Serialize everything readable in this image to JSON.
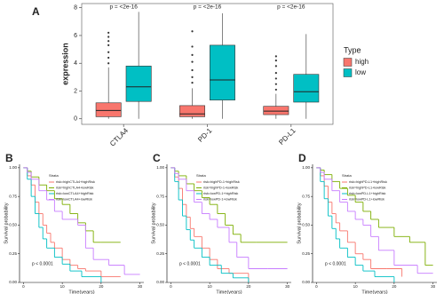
{
  "chart_data": [
    {
      "type": "box",
      "label": "A",
      "ylabel": "expression",
      "categories": [
        "CTLA4",
        "PD-1",
        "PD-L1"
      ],
      "annotations": [
        "p = <2e-16",
        "p = <2e-16",
        "p = <2e-16"
      ],
      "legend_title": "Type",
      "ylim": [
        -0.4,
        8.3
      ],
      "yticks": [
        0,
        2,
        4,
        6,
        8
      ],
      "series": [
        {
          "name": "high",
          "color": "#F8766D",
          "q1": [
            0.15,
            0.15,
            0.3
          ],
          "median": [
            0.6,
            0.35,
            0.55
          ],
          "q3": [
            1.15,
            0.95,
            0.9
          ],
          "whisker_low": [
            0,
            0,
            0
          ],
          "whisker_high": [
            3.7,
            2.2,
            1.8
          ],
          "outliers": [
            [
              4.0,
              4.4,
              4.8,
              5.3,
              5.6,
              5.9,
              6.2
            ],
            [
              2.6,
              3.0,
              3.5,
              4.1,
              4.6,
              5.2,
              6.3
            ],
            [
              2.1,
              2.5,
              2.9,
              3.3,
              3.8,
              4.2,
              4.5
            ]
          ]
        },
        {
          "name": "low",
          "color": "#00BFC4",
          "q1": [
            1.25,
            1.35,
            1.2
          ],
          "median": [
            2.3,
            2.8,
            1.95
          ],
          "q3": [
            3.8,
            5.3,
            3.2
          ],
          "whisker_low": [
            0,
            0,
            0
          ],
          "whisker_high": [
            7.7,
            7.6,
            6.1
          ],
          "outliers": [
            [],
            [],
            []
          ]
        }
      ]
    },
    {
      "type": "step",
      "label": "B",
      "xlabel": "Time(years)",
      "ylabel": "Survival probability",
      "legend_title": "Strata",
      "annotation": "p < 0.0001",
      "xlim": [
        -1,
        31
      ],
      "ylim": [
        0,
        1.03
      ],
      "xticks": [
        0,
        10,
        20,
        30
      ],
      "yticks": [
        {
          "value": 0,
          "label": "0.00"
        },
        {
          "value": 0.25,
          "label": "0.25"
        },
        {
          "value": 0.5,
          "label": "0.50"
        },
        {
          "value": 0.75,
          "label": "0.75"
        },
        {
          "value": 1,
          "label": "1.00"
        }
      ],
      "series": [
        {
          "name": "risk=highCTLA4+highRisk",
          "color": "#F8766D",
          "x": [
            0,
            1,
            2,
            3,
            4,
            5,
            6,
            7,
            8,
            10,
            12,
            14,
            16,
            20,
            25
          ],
          "values": [
            1,
            0.93,
            0.85,
            0.7,
            0.6,
            0.5,
            0.43,
            0.35,
            0.3,
            0.2,
            0.15,
            0.12,
            0.1,
            0.05,
            0.05
          ]
        },
        {
          "name": "risk=highCTLA4+lowRisk",
          "color": "#7CAE00",
          "x": [
            0,
            1,
            2,
            4,
            6,
            8,
            10,
            12,
            14,
            16,
            18,
            20,
            25
          ],
          "values": [
            1,
            0.97,
            0.92,
            0.85,
            0.8,
            0.73,
            0.68,
            0.6,
            0.52,
            0.45,
            0.35,
            0.35,
            0.35
          ]
        },
        {
          "name": "risk=lowCTLA4+highRisk",
          "color": "#00BFC4",
          "x": [
            0,
            1,
            2,
            3,
            4,
            5,
            6,
            8,
            10,
            12,
            15,
            20
          ],
          "values": [
            1,
            0.9,
            0.75,
            0.6,
            0.48,
            0.38,
            0.3,
            0.22,
            0.16,
            0.1,
            0.05,
            0
          ]
        },
        {
          "name": "risk=lowCTLA4+lowRisk",
          "color": "#C77CFF",
          "x": [
            0,
            1,
            2,
            4,
            6,
            8,
            10,
            14,
            16,
            18,
            22,
            26,
            30
          ],
          "values": [
            1,
            0.96,
            0.9,
            0.8,
            0.72,
            0.62,
            0.55,
            0.5,
            0.3,
            0.2,
            0.15,
            0.07,
            0.07
          ]
        }
      ]
    },
    {
      "type": "step",
      "label": "C",
      "xlabel": "Time(years)",
      "ylabel": "Survival probability",
      "legend_title": "Strata",
      "annotation": "p < 0.0001",
      "xlim": [
        -1,
        31
      ],
      "ylim": [
        0,
        1.03
      ],
      "xticks": [
        0,
        10,
        20,
        30
      ],
      "yticks": [
        {
          "value": 0,
          "label": "0.00"
        },
        {
          "value": 0.25,
          "label": "0.25"
        },
        {
          "value": 0.5,
          "label": "0.50"
        },
        {
          "value": 0.75,
          "label": "0.75"
        },
        {
          "value": 1,
          "label": "1.00"
        }
      ],
      "series": [
        {
          "name": "risk=highPD-1+highRisk",
          "color": "#F8766D",
          "x": [
            0,
            1,
            2,
            3,
            4,
            5,
            6,
            8,
            10,
            12,
            15,
            20
          ],
          "values": [
            1,
            0.92,
            0.82,
            0.68,
            0.57,
            0.47,
            0.4,
            0.3,
            0.2,
            0.12,
            0.08,
            0
          ]
        },
        {
          "name": "risk=highPD-1+lowRisk",
          "color": "#7CAE00",
          "x": [
            0,
            1,
            2,
            4,
            6,
            8,
            10,
            12,
            14,
            16,
            18,
            22,
            30
          ],
          "values": [
            1,
            0.97,
            0.93,
            0.86,
            0.8,
            0.74,
            0.68,
            0.6,
            0.5,
            0.42,
            0.35,
            0.35,
            0.35
          ]
        },
        {
          "name": "risk=lowPD-1+highRisk",
          "color": "#00BFC4",
          "x": [
            0,
            1,
            2,
            3,
            4,
            5,
            6,
            8,
            10,
            13,
            16,
            20
          ],
          "values": [
            1,
            0.88,
            0.72,
            0.58,
            0.46,
            0.37,
            0.3,
            0.22,
            0.15,
            0.08,
            0.04,
            0
          ]
        },
        {
          "name": "risk=lowPD-1+lowRisk",
          "color": "#C77CFF",
          "x": [
            0,
            1,
            2,
            4,
            6,
            8,
            10,
            12,
            15,
            17,
            20,
            25,
            30
          ],
          "values": [
            1,
            0.95,
            0.9,
            0.8,
            0.7,
            0.6,
            0.55,
            0.48,
            0.35,
            0.22,
            0.12,
            0.12,
            0.12
          ]
        }
      ]
    },
    {
      "type": "step",
      "label": "D",
      "xlabel": "Time(years)",
      "ylabel": "Survival probability",
      "legend_title": "Strata",
      "annotation": "p < 0.0001",
      "xlim": [
        -1,
        31
      ],
      "ylim": [
        0,
        1.03
      ],
      "xticks": [
        0,
        10,
        20,
        30
      ],
      "yticks": [
        {
          "value": 0,
          "label": "0.00"
        },
        {
          "value": 0.25,
          "label": "0.25"
        },
        {
          "value": 0.5,
          "label": "0.50"
        },
        {
          "value": 0.75,
          "label": "0.75"
        },
        {
          "value": 1,
          "label": "1.00"
        }
      ],
      "series": [
        {
          "name": "risk=highPD-L1+highRisk",
          "color": "#F8766D",
          "x": [
            0,
            1,
            2,
            3,
            4,
            5,
            6,
            8,
            10,
            12,
            14,
            18,
            22
          ],
          "values": [
            1,
            0.93,
            0.84,
            0.7,
            0.6,
            0.52,
            0.45,
            0.35,
            0.25,
            0.2,
            0.12,
            0.12,
            0.05
          ]
        },
        {
          "name": "risk=highPD-L1+lowRisk",
          "color": "#7CAE00",
          "x": [
            0,
            1,
            2,
            4,
            6,
            8,
            10,
            12,
            14,
            16,
            20,
            24,
            28,
            30
          ],
          "values": [
            1,
            0.98,
            0.94,
            0.88,
            0.82,
            0.76,
            0.7,
            0.62,
            0.55,
            0.48,
            0.4,
            0.35,
            0.15,
            0.15
          ]
        },
        {
          "name": "risk=lowPD-L1+highRisk",
          "color": "#00BFC4",
          "x": [
            0,
            1,
            2,
            3,
            4,
            5,
            6,
            8,
            10,
            12,
            15,
            20
          ],
          "values": [
            1,
            0.88,
            0.73,
            0.58,
            0.47,
            0.38,
            0.3,
            0.22,
            0.15,
            0.1,
            0.05,
            0
          ]
        },
        {
          "name": "risk=lowPD-L1+lowRisk",
          "color": "#C77CFF",
          "x": [
            0,
            1,
            2,
            4,
            6,
            8,
            10,
            12,
            14,
            16,
            20,
            26,
            30
          ],
          "values": [
            1,
            0.96,
            0.9,
            0.8,
            0.7,
            0.62,
            0.55,
            0.5,
            0.4,
            0.28,
            0.15,
            0.08,
            0.08
          ]
        }
      ]
    }
  ]
}
